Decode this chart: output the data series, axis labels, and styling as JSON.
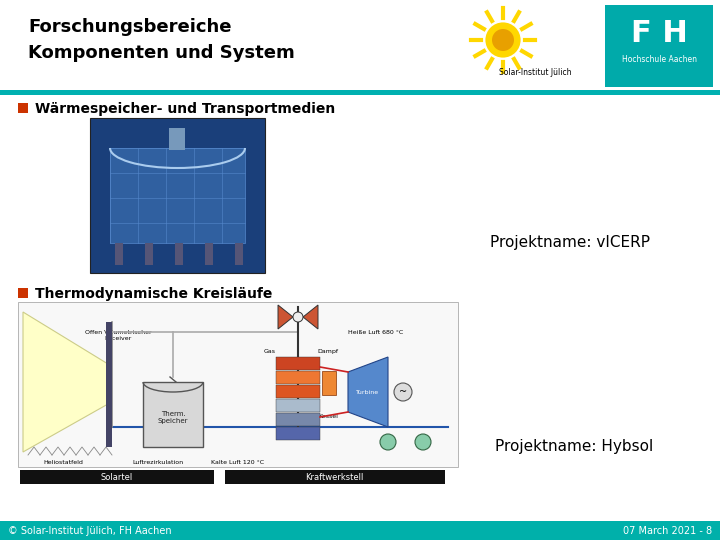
{
  "title_line1": "Forschungsbereiche",
  "title_line2": "Komponenten und System",
  "title_fontsize": 13,
  "title_color": "#000000",
  "header_line_color": "#00B0B0",
  "bullet_color": "#CC3300",
  "bullet1_text": "Wärmespeicher- und Transportmedien",
  "bullet2_text": "Thermodynamische Kreisläufe",
  "bullet_fontsize": 10,
  "projektname1": "Projektname: vICERP",
  "projektname2": "Projektname: Hybsol",
  "projektname_fontsize": 11,
  "footer_bg": "#00B0AA",
  "footer_text_left": "© Solar-Institut Jülich, FH Aachen",
  "footer_text_right": "07 March 2021 - 8",
  "footer_fontsize": 7,
  "footer_text_color": "#ffffff",
  "label1_text": "Solartel",
  "label2_text": "Kraftwerkstell",
  "label_bg": "#111111",
  "label_text_color": "#ffffff",
  "label_fontsize": 6,
  "slide_bg": "#ffffff",
  "logo_sij_text": "Solar-Institut Jülich",
  "logo_fha_text": "Hochschule Aachen"
}
